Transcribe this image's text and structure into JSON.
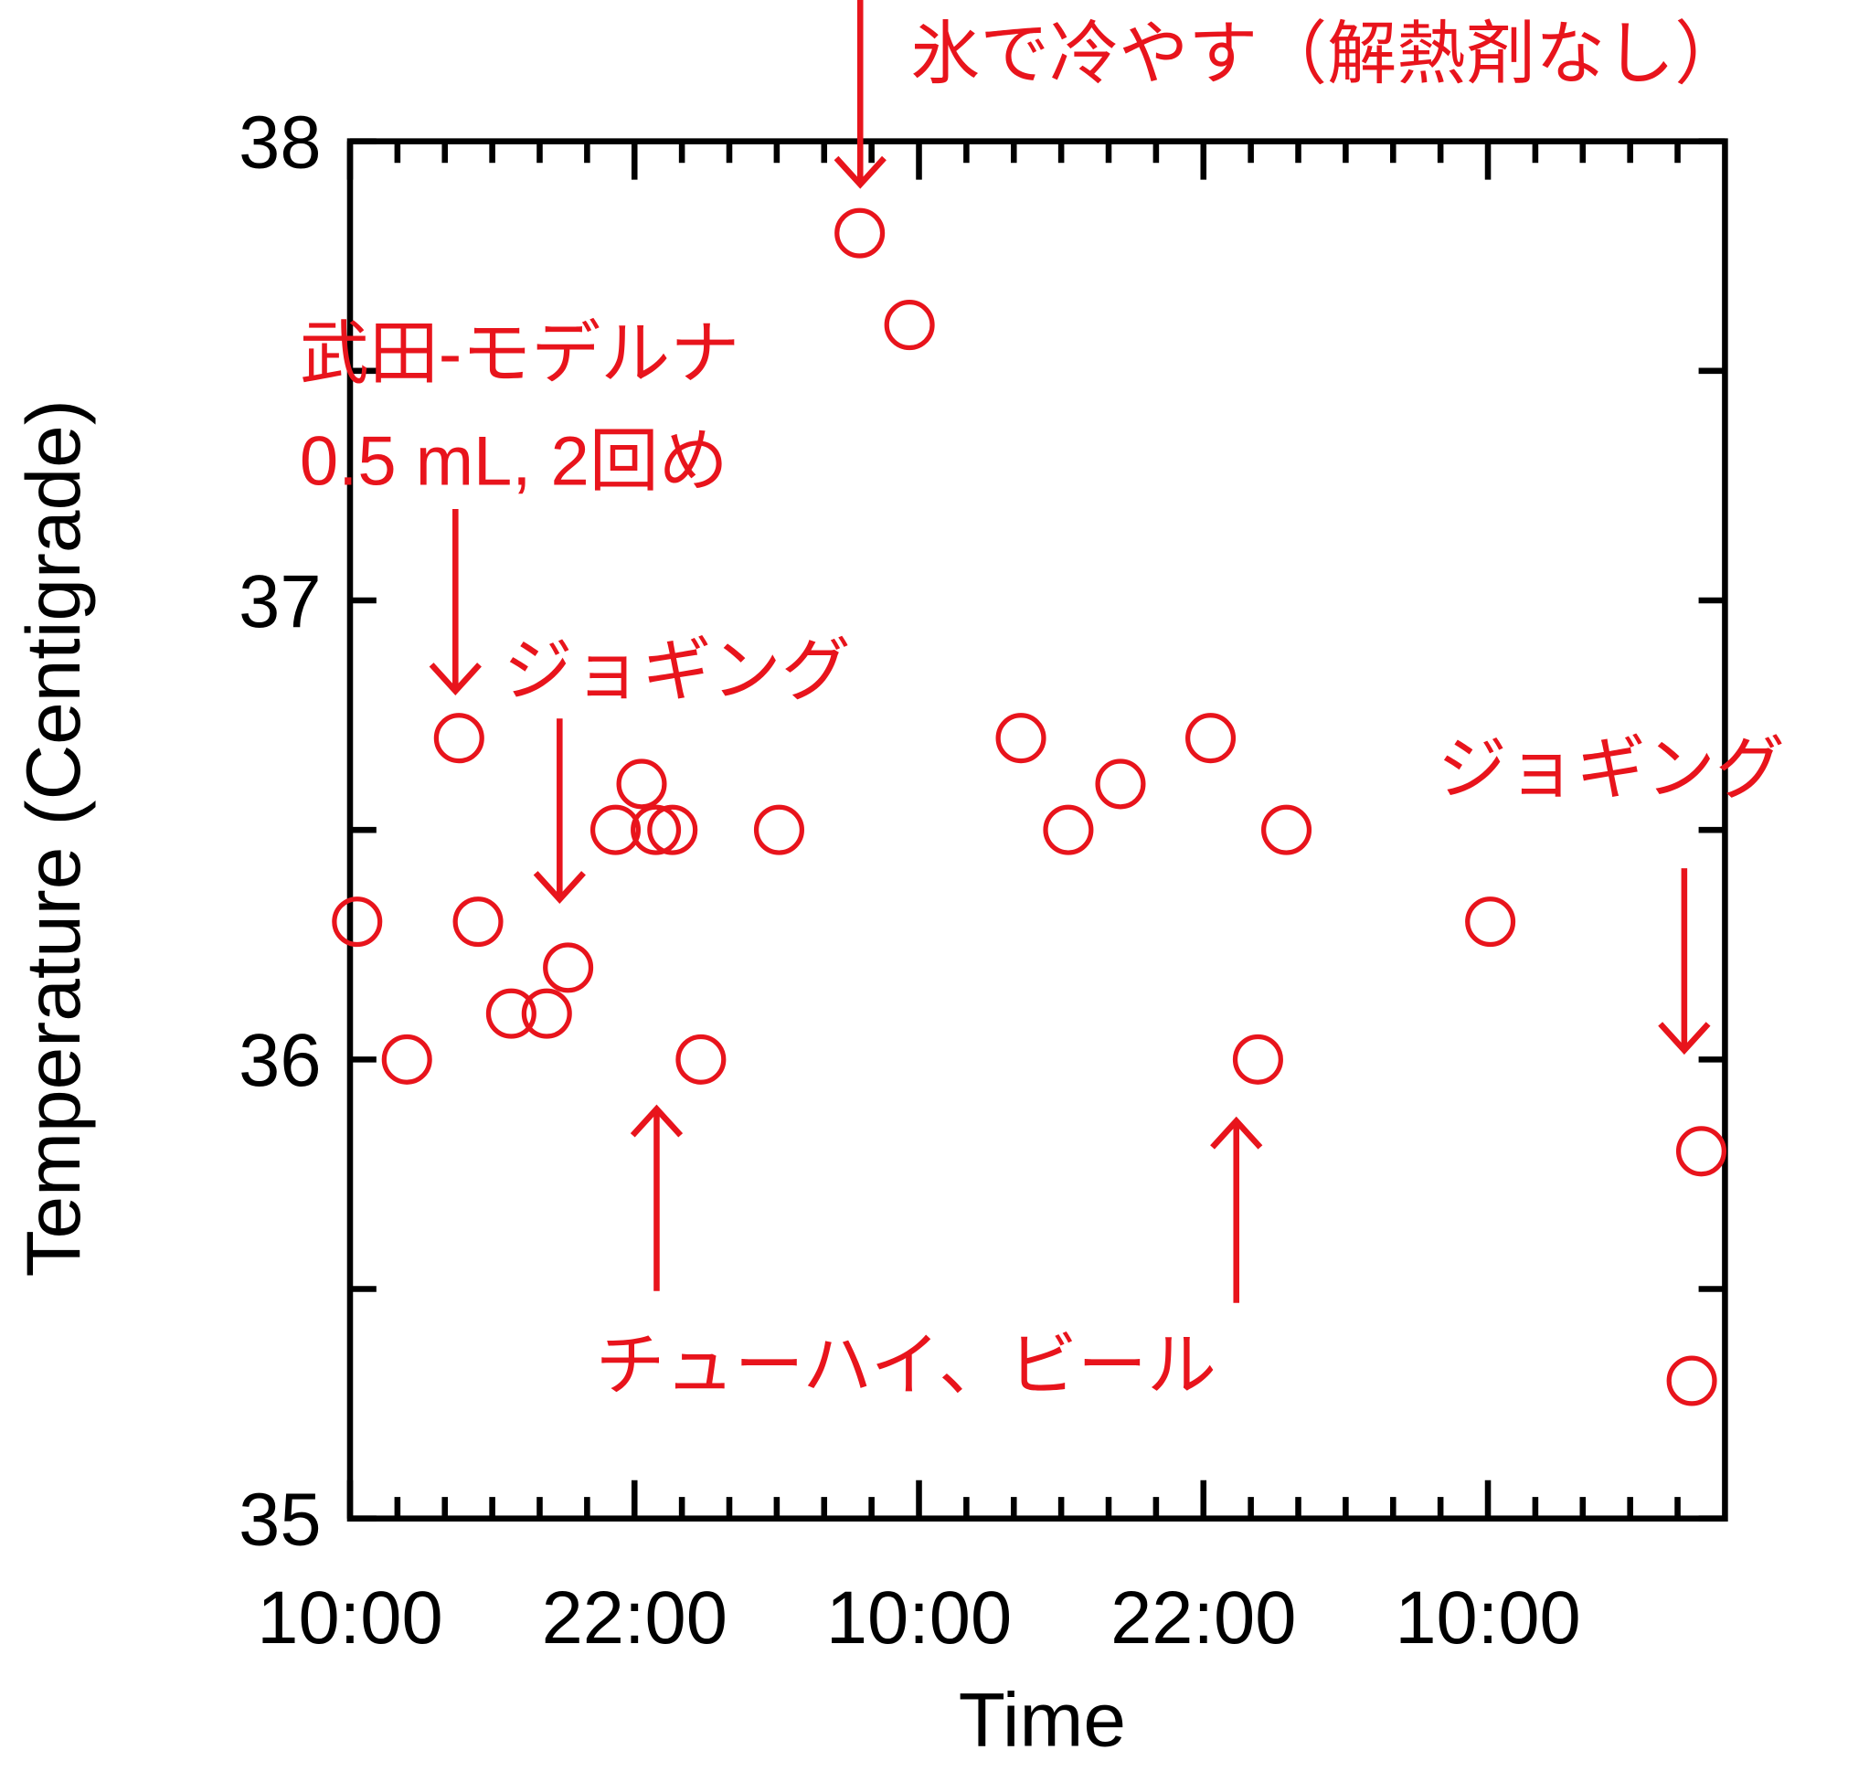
{
  "chart_data": {
    "type": "scatter",
    "xlabel": "Time",
    "ylabel": "Temperature (Centigrade)",
    "xlim": [
      0,
      58
    ],
    "ylim": [
      35,
      38
    ],
    "xticks": [
      {
        "value": 0,
        "label": "10:00"
      },
      {
        "value": 12,
        "label": "22:00"
      },
      {
        "value": 24,
        "label": "10:00"
      },
      {
        "value": 36,
        "label": "22:00"
      },
      {
        "value": 48,
        "label": "10:00"
      }
    ],
    "xminorticks": [
      2,
      4,
      6,
      8,
      10,
      14,
      16,
      18,
      20,
      22,
      26,
      28,
      30,
      32,
      34,
      38,
      40,
      42,
      44,
      46,
      50,
      52,
      54,
      56
    ],
    "yticks": [
      35,
      36,
      37,
      38
    ],
    "yminorticks": [
      35.5,
      36.5,
      37.5
    ],
    "color": "#e8141c",
    "x": [
      0.3,
      2.4,
      4.6,
      5.4,
      6.8,
      8.3,
      9.2,
      11.2,
      12.3,
      12.9,
      13.6,
      14.8,
      18.1,
      21.5,
      23.6,
      28.3,
      30.3,
      32.5,
      36.3,
      38.3,
      39.5,
      48.1,
      57.0,
      56.6
    ],
    "values": [
      36.3,
      36.0,
      36.7,
      36.3,
      36.1,
      36.1,
      36.2,
      36.5,
      36.6,
      36.5,
      36.5,
      36.0,
      36.5,
      37.8,
      37.6,
      36.7,
      36.5,
      36.6,
      36.7,
      36.0,
      36.5,
      36.3,
      35.8,
      35.3
    ],
    "annotations": [
      "氷で冷やす（解熱剤なし）",
      "武田-モデルナ",
      "0.5 mL, 2回め",
      "ジョギング",
      "ジョギング",
      "チューハイ、ビール"
    ]
  }
}
